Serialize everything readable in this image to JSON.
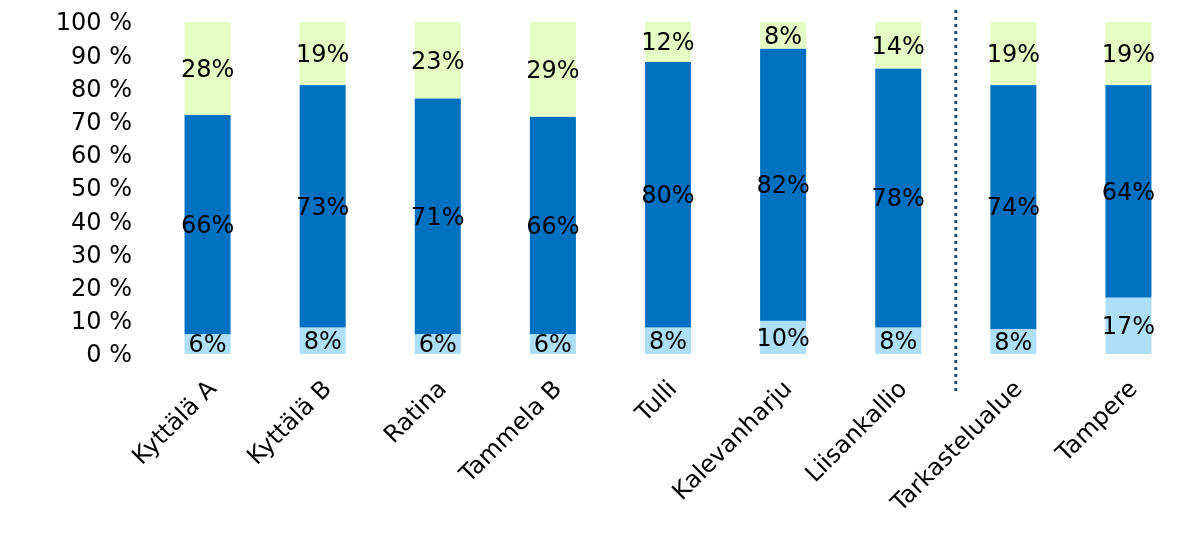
{
  "chart_data": {
    "type": "bar",
    "stacked": true,
    "categories": [
      "Kyttälä A",
      "Kyttälä B",
      "Ratina",
      "Tammela B",
      "Tulli",
      "Kalevanharju",
      "Liisankallio",
      "Tarkastelualue",
      "Tampere"
    ],
    "series": [
      {
        "color": "#addff8",
        "values": [
          6,
          8,
          6,
          6,
          8,
          10,
          8,
          7.5,
          17
        ],
        "value_labels": [
          "6%",
          "8%",
          "6%",
          "6%",
          "8%",
          "10%",
          "8%",
          "8%",
          "17%"
        ]
      },
      {
        "color": "#0070c0",
        "values": [
          66,
          73,
          71,
          65.5,
          80,
          82,
          78,
          73.5,
          64
        ],
        "value_labels": [
          "66%",
          "73%",
          "71%",
          "66%",
          "80%",
          "82%",
          "78%",
          "74%",
          "64%"
        ]
      },
      {
        "color": "#e5fcc2",
        "values": [
          28,
          19,
          23,
          28.5,
          12,
          8,
          14,
          19,
          19
        ],
        "value_labels": [
          "28%",
          "19%",
          "23%",
          "29%",
          "12%",
          "8%",
          "14%",
          "19%",
          "19%"
        ]
      }
    ],
    "ylim": [
      0,
      100
    ],
    "yticks": [
      {
        "value": 0,
        "label": "0 %"
      },
      {
        "value": 10,
        "label": "10 %"
      },
      {
        "value": 20,
        "label": "20 %"
      },
      {
        "value": 30,
        "label": "30 %"
      },
      {
        "value": 40,
        "label": "40 %"
      },
      {
        "value": 50,
        "label": "50 %"
      },
      {
        "value": 60,
        "label": "60 %"
      },
      {
        "value": 70,
        "label": "70 %"
      },
      {
        "value": 80,
        "label": "80 %"
      },
      {
        "value": 90,
        "label": "90 %"
      },
      {
        "value": 100,
        "label": "100 %"
      }
    ],
    "grid": false
  }
}
